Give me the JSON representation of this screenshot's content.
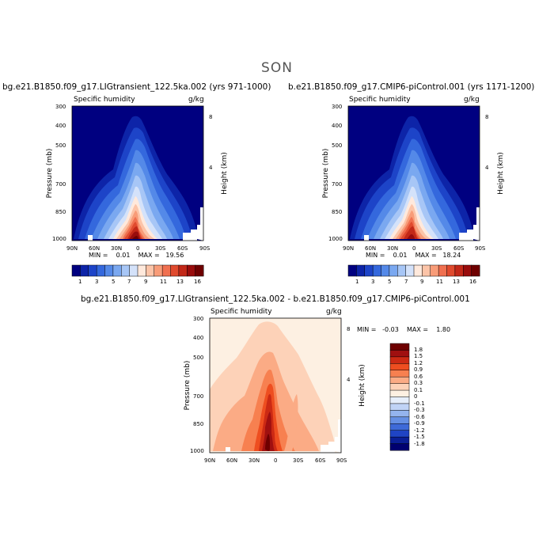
{
  "figure": {
    "season": "SON"
  },
  "panels": [
    {
      "title": "bg.e21.B1850.f09_g17.LIGtransient_122.5ka.002 (yrs 971-1000)",
      "var_label": "Specific humidity",
      "units": "g/kg",
      "ylabel": "Pressure (mb)",
      "ylabel_right": "Height (km)",
      "minmax": "MIN =    0.01    MAX =   19.56"
    },
    {
      "title": "b.e21.B1850.f09_g17.CMIP6-piControl.001 (yrs 1171-1200)",
      "var_label": "Specific humidity",
      "units": "g/kg",
      "ylabel": "Pressure (mb)",
      "ylabel_right": "Height (km)",
      "minmax": "MIN =    0.01    MAX =   18.24"
    },
    {
      "title": "bg.e21.B1850.f09_g17.LIGtransient_122.5ka.002 - b.e21.B1850.f09_g17.CMIP6-piControl.001",
      "var_label": "Specific humidity",
      "units": "g/kg",
      "ylabel": "Pressure (mb)",
      "ylabel_right": "Height (km)",
      "minmax": "MIN =   -0.03    MAX =    1.80"
    }
  ],
  "chart_data": [
    {
      "type": "heatmap",
      "title": "Specific humidity",
      "x_ticks": [
        "90N",
        "60N",
        "30N",
        "0",
        "30S",
        "60S",
        "90S"
      ],
      "y_ticks": [
        "300",
        "400",
        "500",
        "700",
        "850",
        "1000"
      ],
      "y_right_ticks": [
        "8",
        "4"
      ],
      "xlim": [
        90,
        -90
      ],
      "ylim": [
        1000,
        300
      ],
      "colorbar": [
        "1",
        "3",
        "5",
        "7",
        "9",
        "11",
        "13",
        "16"
      ],
      "min": 0.01,
      "max": 19.56
    },
    {
      "type": "heatmap",
      "title": "Specific humidity",
      "x_ticks": [
        "90N",
        "60N",
        "30N",
        "0",
        "30S",
        "60S",
        "90S"
      ],
      "y_ticks": [
        "300",
        "400",
        "500",
        "700",
        "850",
        "1000"
      ],
      "y_right_ticks": [
        "8",
        "4"
      ],
      "xlim": [
        90,
        -90
      ],
      "ylim": [
        1000,
        300
      ],
      "colorbar": [
        "1",
        "3",
        "5",
        "7",
        "9",
        "11",
        "13",
        "16"
      ],
      "min": 0.01,
      "max": 18.24
    },
    {
      "type": "heatmap",
      "title": "Specific humidity",
      "x_ticks": [
        "90N",
        "60N",
        "30N",
        "0",
        "30S",
        "60S",
        "90S"
      ],
      "y_ticks": [
        "300",
        "400",
        "500",
        "700",
        "850",
        "1000"
      ],
      "y_right_ticks": [
        "8",
        "4"
      ],
      "xlim": [
        90,
        -90
      ],
      "ylim": [
        1000,
        300
      ],
      "colorbar": [
        "1.8",
        "1.5",
        "1.2",
        "0.9",
        "0.6",
        "0.3",
        "0.1",
        "0",
        "-0.1",
        "-0.3",
        "-0.6",
        "-0.9",
        "-1.2",
        "-1.5",
        "-1.8"
      ],
      "min": -0.03,
      "max": 1.8
    }
  ],
  "colors": {
    "abs_scale": [
      "#000080",
      "#0d24a8",
      "#1d44c8",
      "#3468dd",
      "#5489e8",
      "#7aa8f0",
      "#a7c6f6",
      "#d4e2fa",
      "#ffe9dc",
      "#fcc4a8",
      "#f89c78",
      "#f07050",
      "#e04a2e",
      "#c22818",
      "#990c0c",
      "#6e0000"
    ],
    "diff_scale": [
      "#6e0000",
      "#a01010",
      "#cc2a14",
      "#ee4e20",
      "#f78050",
      "#fbab85",
      "#fdd2b8",
      "#fdf0e2",
      "#e6eefb",
      "#c0d3f6",
      "#94b4ee",
      "#6690e4",
      "#3e6ad8",
      "#1f44c4",
      "#0a1e96",
      "#000070"
    ]
  }
}
